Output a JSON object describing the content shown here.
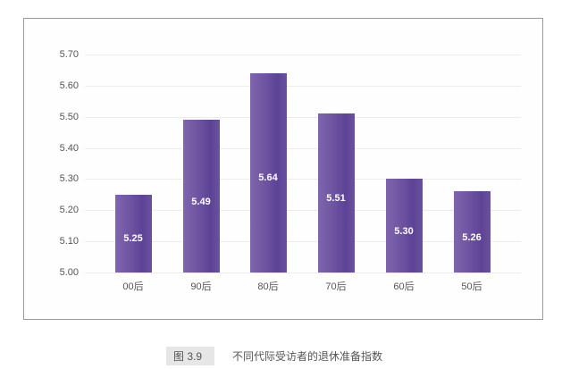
{
  "chart_data": {
    "type": "bar",
    "title": "不同代际受访者的退休准备指数",
    "figure_number": "图 3.9",
    "categories": [
      "00后",
      "90后",
      "80后",
      "70后",
      "60后",
      "50后"
    ],
    "values": [
      5.25,
      5.49,
      5.64,
      5.51,
      5.3,
      5.26
    ],
    "data_labels": [
      "5.25",
      "5.49",
      "5.64",
      "5.51",
      "5.30",
      "5.26"
    ],
    "xlabel": "",
    "ylabel": "",
    "ylim": [
      5.0,
      5.7
    ],
    "yticks": [
      "5.70",
      "5.60",
      "5.50",
      "5.40",
      "5.30",
      "5.20",
      "5.10",
      "5.00"
    ],
    "grid": true,
    "legend": null,
    "bar_color": "#6a4f9e"
  },
  "caption": {
    "number": "图 3.9",
    "text": "不同代际受访者的退休准备指数"
  }
}
